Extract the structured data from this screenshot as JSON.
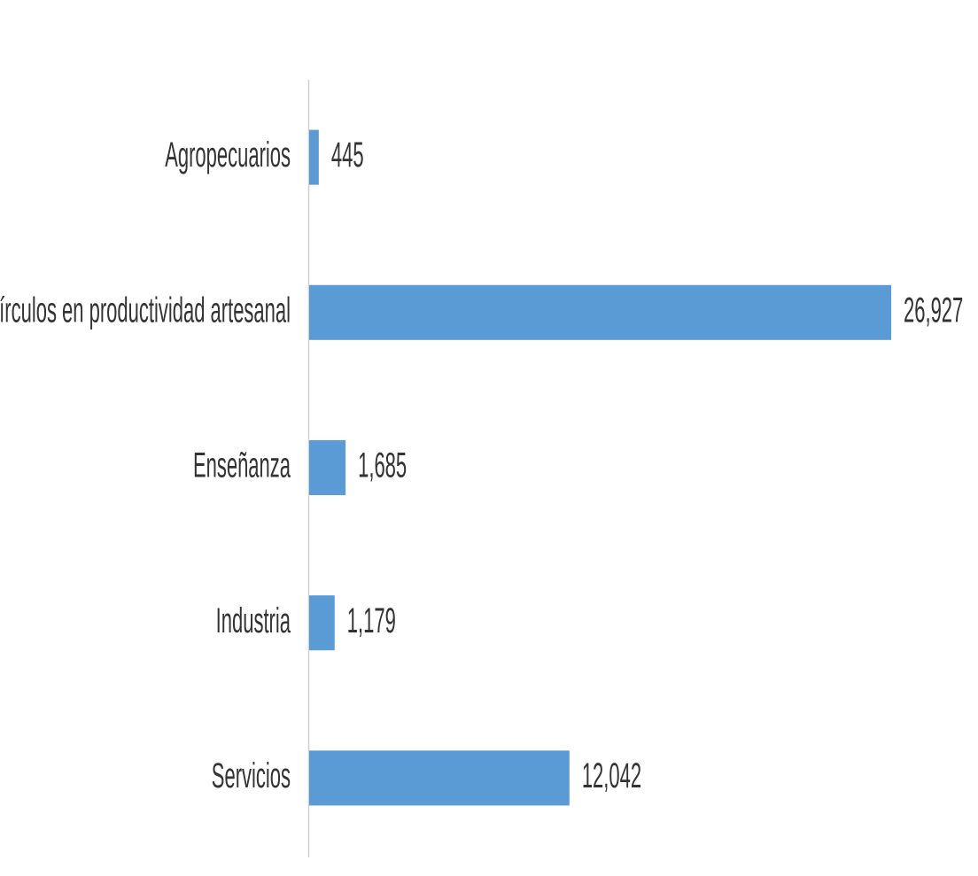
{
  "chart_data": {
    "type": "bar",
    "orientation": "horizontal",
    "categories": [
      "Agropecuarios",
      "Círculos en productividad artesanal",
      "Enseñanza",
      "Industria",
      "Servicios"
    ],
    "values": [
      445,
      26927,
      1685,
      1179,
      12042
    ],
    "value_labels": [
      "445",
      "26,927",
      "1,685",
      "1,179",
      "12,042"
    ],
    "color": "#5b9bd5"
  }
}
